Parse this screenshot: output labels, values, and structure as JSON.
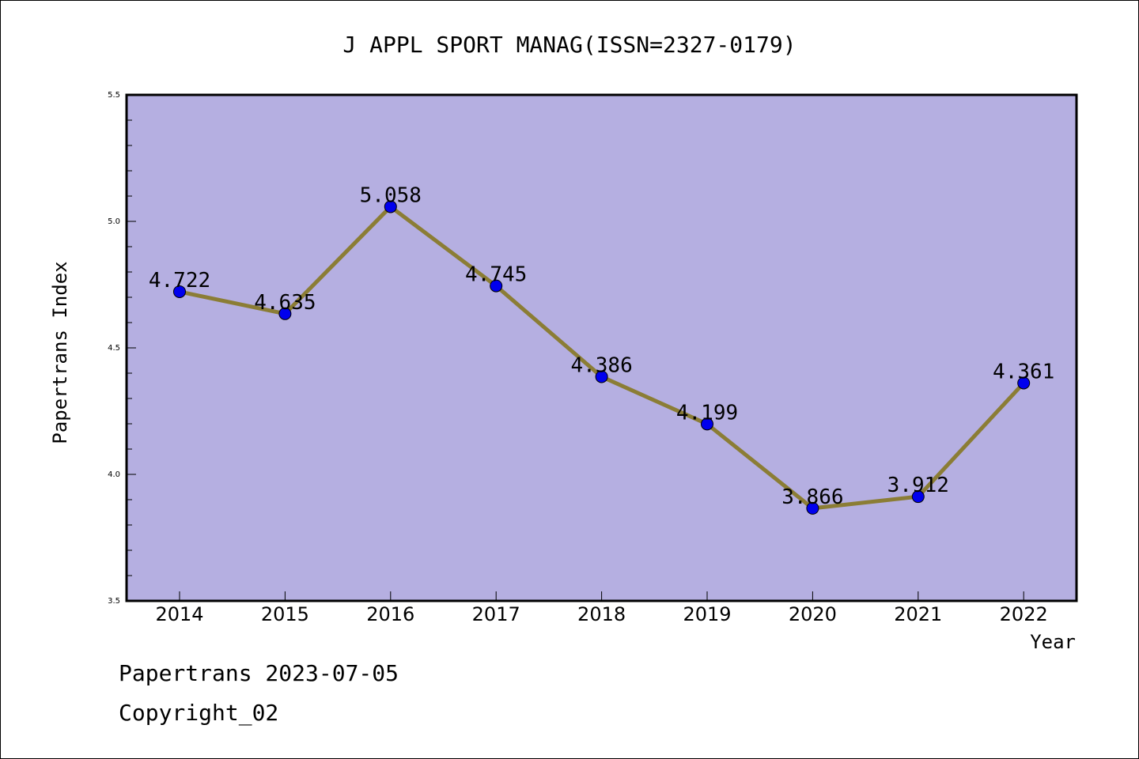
{
  "chart_data": {
    "type": "line",
    "title": "J APPL SPORT MANAG(ISSN=2327-0179)",
    "xlabel": "Year",
    "ylabel": "Papertrans Index",
    "categories": [
      "2014",
      "2015",
      "2016",
      "2017",
      "2018",
      "2019",
      "2020",
      "2021",
      "2022"
    ],
    "series": [
      {
        "values": [
          4.722,
          4.635,
          5.058,
          4.745,
          4.386,
          4.199,
          3.866,
          3.912,
          4.361
        ],
        "labels": [
          "4.722",
          "4.635",
          "5.058",
          "4.745",
          "4.386",
          "4.199",
          "3.866",
          "3.912",
          "4.361"
        ]
      }
    ],
    "ylim": [
      3.5,
      5.5
    ],
    "yticks": [
      "3.5",
      "4.0",
      "4.5",
      "5.0",
      "5.5"
    ],
    "grid": false,
    "colors": {
      "plot_background": "#b5afe1",
      "line": "#8b7d35",
      "marker": "#0000ee"
    }
  },
  "footer": {
    "date_line": "Papertrans 2023-07-05",
    "copyright_line": "Copyright_02"
  }
}
